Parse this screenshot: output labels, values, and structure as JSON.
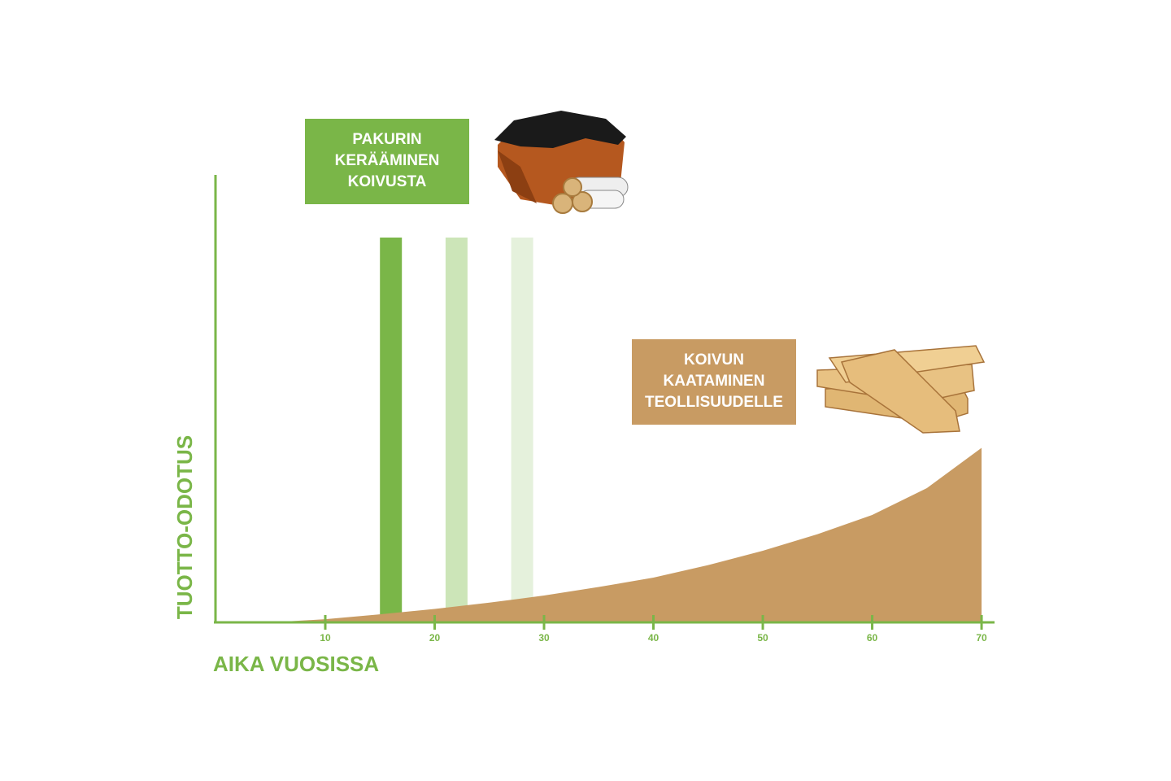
{
  "chart_data": {
    "type": "area",
    "x_label": "AIKA VUOSISSA",
    "y_label": "TUOTTO-ODOTUS",
    "axis_color": "#7ab648",
    "xlim": [
      0,
      71
    ],
    "ylim": [
      0,
      100
    ],
    "xticks": [
      10,
      20,
      30,
      40,
      50,
      60,
      70
    ],
    "x": [
      5,
      10,
      15,
      20,
      25,
      30,
      35,
      40,
      45,
      50,
      55,
      60,
      65,
      70
    ],
    "values": [
      0,
      0.7,
      1.8,
      3,
      4.4,
      6,
      7.9,
      10,
      12.8,
      16,
      19.7,
      24,
      30,
      39
    ],
    "color": "#c89b63",
    "bars": [
      {
        "x": 16,
        "value": 86,
        "color": "#7ab648"
      },
      {
        "x": 22,
        "value": 86,
        "color": "#cce5b8"
      },
      {
        "x": 28,
        "value": 86,
        "color": "#e5f1dc"
      }
    ],
    "annotations": [
      {
        "lines": [
          "PAKURIN",
          "KERÄÄMINEN",
          "KOIVUSTA"
        ],
        "color": "#7ab648"
      },
      {
        "lines": [
          "KOIVUN",
          "KAATAMINEN",
          "TEOLLISUUDELLE"
        ],
        "color": "#c89b63"
      }
    ]
  }
}
